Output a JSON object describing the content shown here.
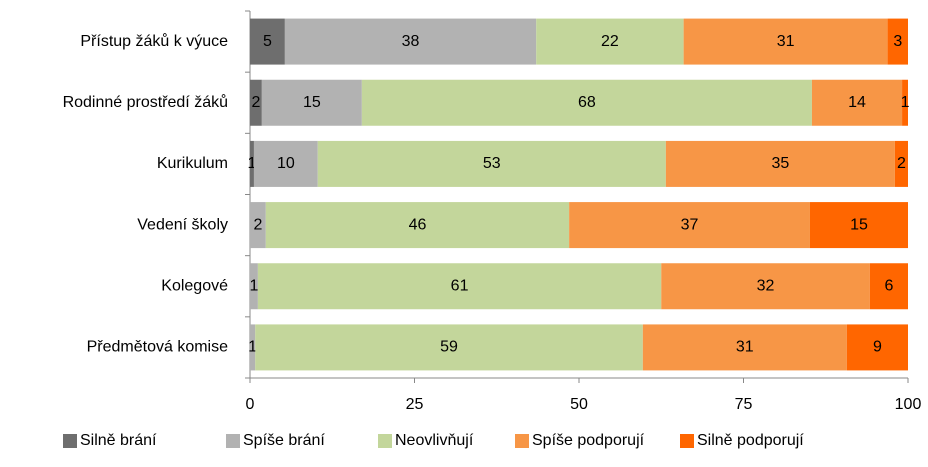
{
  "chart_data": {
    "type": "stacked-bar-horizontal",
    "categories": [
      "Přístup žáků  k výuce",
      "Rodinné prostředí žáků",
      "Kurikulum",
      "Vedení školy",
      "Kolegové",
      "Předmětová komise"
    ],
    "series": [
      {
        "name": "Silně brání",
        "color": "#6e6e6e",
        "values": [
          5.3,
          1.8,
          0.6,
          0,
          0,
          0
        ],
        "value_labels": [
          "5",
          "2",
          "1",
          null,
          null,
          null
        ]
      },
      {
        "name": "Spíše brání",
        "color": "#b2b2b2",
        "values": [
          38.2,
          15.2,
          9.7,
          2.4,
          1.2,
          0.8
        ],
        "value_labels": [
          "38",
          "15",
          "10",
          "2",
          "1",
          "1"
        ]
      },
      {
        "name": "Neovlivňují",
        "color": "#c3d69b",
        "values": [
          22.4,
          68.4,
          52.9,
          46.1,
          61.3,
          58.9
        ],
        "value_labels": [
          "22",
          "68",
          "53",
          "46",
          "61",
          "59"
        ]
      },
      {
        "name": "Spíše podporují",
        "color": "#f79646",
        "values": [
          31.0,
          13.7,
          34.8,
          36.6,
          31.7,
          31.0
        ],
        "value_labels": [
          "31",
          "14",
          "35",
          "37",
          "32",
          "31"
        ]
      },
      {
        "name": "Silně podporují",
        "color": "#ff6600",
        "values": [
          3.1,
          0.9,
          2.0,
          14.9,
          5.8,
          9.3
        ],
        "value_labels": [
          "3",
          "1",
          "2",
          "15",
          "6",
          "9"
        ]
      }
    ],
    "xlim": [
      0,
      100
    ],
    "xticks": [
      0,
      25,
      50,
      75,
      100
    ],
    "legend": "bottom"
  }
}
